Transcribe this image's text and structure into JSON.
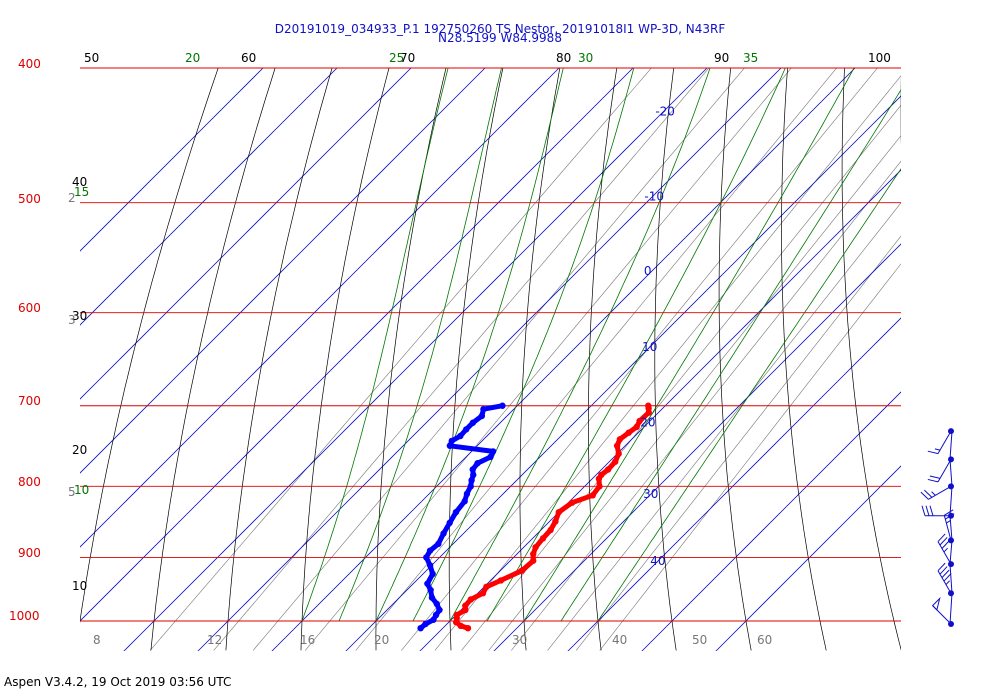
{
  "header": {
    "title_line1": "D20191019_034933_P.1 192750260 TS Nestor, 20191018I1 WP-3D, N43RF",
    "title_line2": "N28.5199 W84.9988"
  },
  "footer": {
    "text": "Aspen V3.4.2, 19 Oct 2019  03:56 UTC"
  },
  "colors": {
    "isobar": "#dd0000",
    "isotherm": "#1010c8",
    "dry_adiabat": "#000000",
    "moist_adiabat": "#007700",
    "mixing_ratio": "#777777",
    "temperature": "#ff0000",
    "dewpoint": "#0000ff",
    "wind": "#1010c8"
  },
  "chart_data": {
    "type": "line",
    "chart_kind": "skew-T log-P diagram",
    "y_axis": {
      "scale": "log",
      "range": [
        1000,
        400
      ],
      "pressure_labels": [
        "400",
        "500",
        "600",
        "700",
        "800",
        "900",
        "1000"
      ]
    },
    "isotherm_labels": [
      "-20",
      "-10",
      "0",
      "10",
      "20",
      "30",
      "40"
    ],
    "isotherm_label_values": [
      -20,
      -10,
      0,
      10,
      20,
      30,
      40
    ],
    "dry_adiabat_labels": {
      "top": [
        "50",
        "60",
        "70",
        "80",
        "90",
        "100"
      ],
      "left": [
        "40",
        "30",
        "20",
        "10"
      ]
    },
    "moist_adiabat_labels": {
      "top": [
        "20",
        "25",
        "30",
        "35"
      ],
      "left": [
        "15",
        "10"
      ]
    },
    "mixing_ratio_labels": {
      "bottom": [
        "8",
        "12",
        "16",
        "20",
        "30",
        "40",
        "50",
        "60"
      ],
      "left": [
        "2",
        "3",
        "5"
      ]
    },
    "series": [
      {
        "name": "temperature",
        "pressure": [
          1012,
          1008,
          1002,
          995,
          990,
          982,
          975,
          965,
          955,
          945,
          935,
          920,
          905,
          895,
          885,
          872,
          860,
          848,
          835,
          822,
          812,
          800,
          790,
          785,
          778,
          768,
          758,
          748,
          740,
          732,
          725,
          718,
          708,
          703,
          700
        ],
        "value": [
          23.4,
          22.1,
          21.0,
          20.5,
          20.1,
          20.6,
          20.0,
          19.9,
          20.7,
          20.3,
          21.4,
          22.9,
          23.1,
          22.2,
          21.6,
          21.4,
          21.3,
          20.8,
          20.0,
          20.5,
          22.3,
          22.0,
          20.9,
          20.7,
          20.9,
          20.8,
          20.2,
          18.9,
          18.4,
          18.7,
          19.0,
          18.6,
          18.7,
          18.1,
          17.7
        ]
      },
      {
        "name": "dewpoint",
        "pressure": [
          1012,
          1005,
          998,
          990,
          982,
          972,
          962,
          950,
          940,
          925,
          912,
          900,
          890,
          880,
          865,
          850,
          835,
          820,
          810,
          800,
          792,
          785,
          778,
          770,
          762,
          755,
          748,
          742,
          736,
          728,
          720,
          712,
          704,
          700
        ],
        "value": [
          17.0,
          17.1,
          17.6,
          17.3,
          17.1,
          15.9,
          14.4,
          13.2,
          11.9,
          11.3,
          9.8,
          8.2,
          7.8,
          8.0,
          7.3,
          6.7,
          6.1,
          5.8,
          5.1,
          4.6,
          3.9,
          3.4,
          2.6,
          2.4,
          3.3,
          2.9,
          -3.7,
          -4.1,
          -3.6,
          -3.7,
          -3.7,
          -3.4,
          -4.1,
          -2.0
        ]
      }
    ],
    "wind_barbs": [
      {
        "pressure": 1005,
        "speed_kt": 50,
        "direction_deg": 315
      },
      {
        "pressure": 955,
        "speed_kt": 45,
        "direction_deg": 330
      },
      {
        "pressure": 910,
        "speed_kt": 35,
        "direction_deg": 330
      },
      {
        "pressure": 875,
        "speed_kt": 25,
        "direction_deg": 345
      },
      {
        "pressure": 840,
        "speed_kt": 30,
        "direction_deg": 270
      },
      {
        "pressure": 800,
        "speed_kt": 25,
        "direction_deg": 240
      },
      {
        "pressure": 765,
        "speed_kt": 20,
        "direction_deg": 210
      },
      {
        "pressure": 730,
        "speed_kt": 15,
        "direction_deg": 210
      }
    ]
  }
}
